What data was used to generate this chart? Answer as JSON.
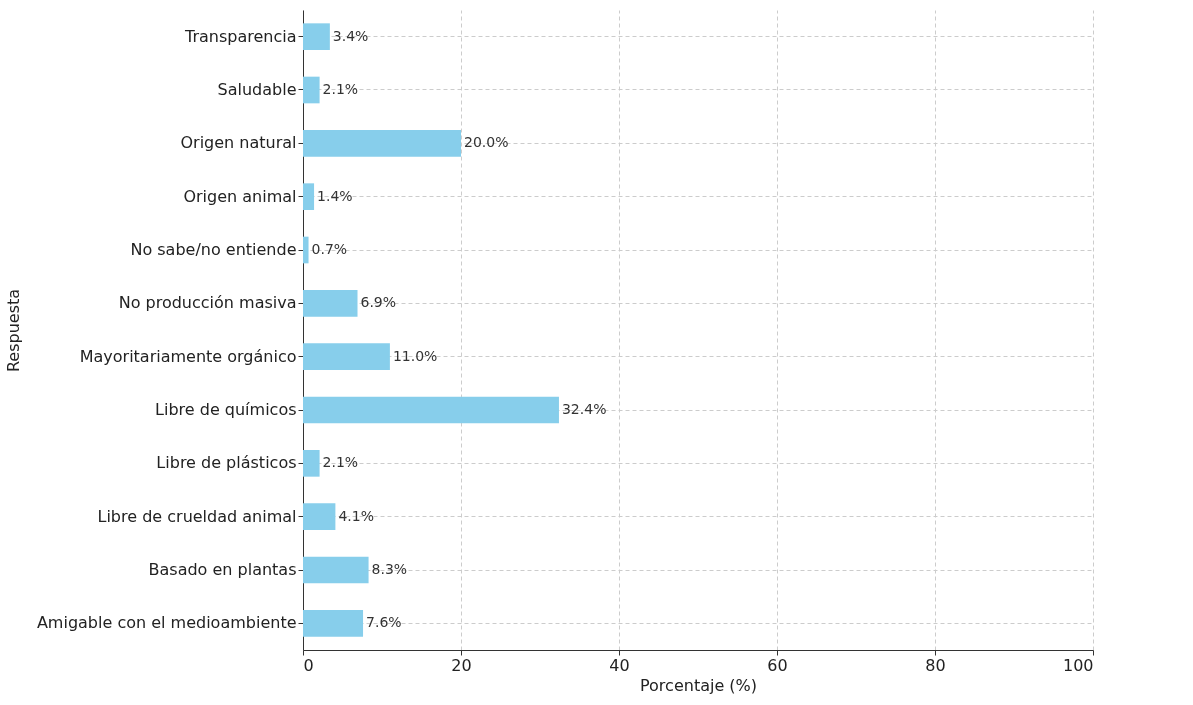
{
  "chart_data": {
    "type": "bar",
    "orientation": "horizontal",
    "xlabel": "Porcentaje (%)",
    "ylabel": "Respuesta",
    "categories": [
      "Transparencia",
      "Saludable",
      "Origen natural",
      "Origen animal",
      "No sabe/no entiende",
      "No producción masiva",
      "Mayoritariamente orgánico",
      "Libre de químicos",
      "Libre de plásticos",
      "Libre de crueldad animal",
      "Basado en plantas",
      "Amigable con el medioambiente"
    ],
    "values": [
      3.4,
      2.1,
      20.0,
      1.4,
      0.7,
      6.9,
      11.0,
      32.4,
      2.1,
      4.1,
      8.3,
      7.6
    ],
    "value_labels": [
      "3.4%",
      "2.1%",
      "20.0%",
      "1.4%",
      "0.7%",
      "6.9%",
      "11.0%",
      "32.4%",
      "2.1%",
      "4.1%",
      "8.3%",
      "7.6%"
    ],
    "color": "#87ceeb",
    "xlim": [
      0,
      100
    ],
    "xticks": [
      0,
      20,
      40,
      60,
      80,
      100
    ],
    "grid": true
  }
}
